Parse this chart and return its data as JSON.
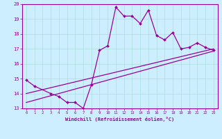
{
  "xlabel": "Windchill (Refroidissement éolien,°C)",
  "bg_color": "#cceeff",
  "line_color": "#990099",
  "grid_color": "#aadddd",
  "x_data": [
    0,
    1,
    2,
    3,
    4,
    5,
    6,
    7,
    8,
    9,
    10,
    11,
    12,
    13,
    14,
    15,
    16,
    17,
    18,
    19,
    20,
    21,
    22,
    23
  ],
  "y_main": [
    14.9,
    14.5,
    null,
    14.0,
    13.8,
    13.4,
    13.4,
    13.0,
    14.6,
    16.9,
    17.2,
    19.8,
    19.2,
    19.2,
    18.7,
    19.6,
    17.9,
    17.6,
    18.1,
    17.0,
    17.1,
    17.4,
    17.1,
    16.9
  ],
  "line1_start": 14.0,
  "line1_end": 17.0,
  "line2_start": 13.4,
  "line2_end": 16.85,
  "ylim": [
    13,
    20
  ],
  "yticks": [
    13,
    14,
    15,
    16,
    17,
    18,
    19,
    20
  ],
  "xticks": [
    0,
    1,
    2,
    3,
    4,
    5,
    6,
    7,
    8,
    9,
    10,
    11,
    12,
    13,
    14,
    15,
    16,
    17,
    18,
    19,
    20,
    21,
    22,
    23
  ]
}
